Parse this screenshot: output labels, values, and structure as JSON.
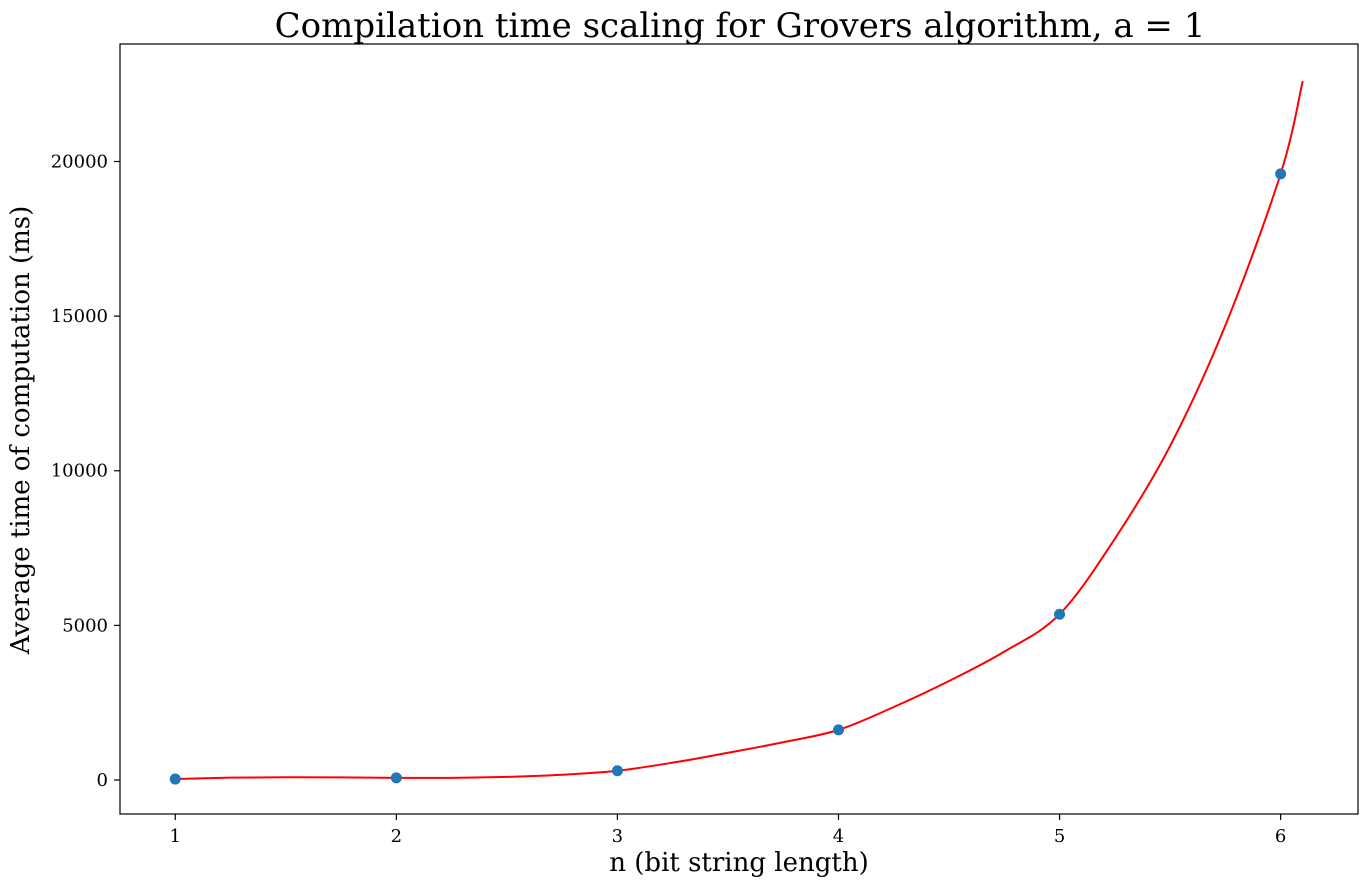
{
  "chart_data": {
    "type": "scatter",
    "title": "Compilation time scaling for Grovers algorithm, a = 1",
    "xlabel": "n (bit string length)",
    "ylabel": "Average time of computation (ms)",
    "xlim": [
      0.75,
      6.35
    ],
    "ylim": [
      -1100,
      23800
    ],
    "xticks": [
      1,
      2,
      3,
      4,
      5,
      6
    ],
    "yticks": [
      0,
      5000,
      10000,
      15000,
      20000
    ],
    "grid": false,
    "series": [
      {
        "kind": "points",
        "color": "#1f77b4",
        "x": [
          1,
          2,
          3,
          4,
          5,
          6
        ],
        "y": [
          30,
          70,
          300,
          1620,
          5360,
          19600
        ]
      },
      {
        "kind": "fit-curve",
        "color": "#ff0000",
        "x": [
          1.0,
          1.25,
          1.5,
          1.75,
          2.0,
          2.25,
          2.5,
          2.75,
          3.0,
          3.25,
          3.5,
          3.75,
          4.0,
          4.25,
          4.5,
          4.75,
          5.0,
          5.25,
          5.5,
          5.75,
          6.0,
          6.1
        ],
        "y": [
          30,
          75,
          90,
          85,
          70,
          70,
          100,
          170,
          300,
          560,
          880,
          1220,
          1620,
          2360,
          3200,
          4150,
          5360,
          7800,
          10800,
          14700,
          19600,
          22600
        ]
      }
    ]
  }
}
